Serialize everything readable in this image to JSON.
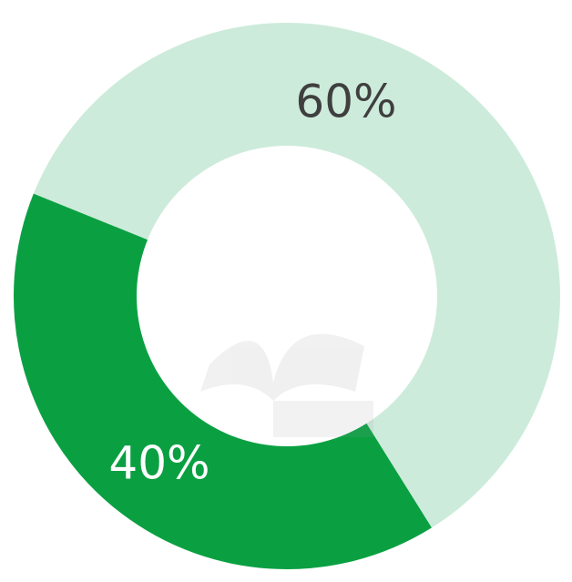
{
  "chart_data": {
    "type": "donut",
    "values": [
      60,
      40
    ],
    "value_labels": [
      "60%",
      "40%"
    ],
    "colors": [
      "#cdebdb",
      "#0aa042"
    ],
    "label_colors": [
      "#3f3f3f",
      "#ffffff"
    ]
  }
}
